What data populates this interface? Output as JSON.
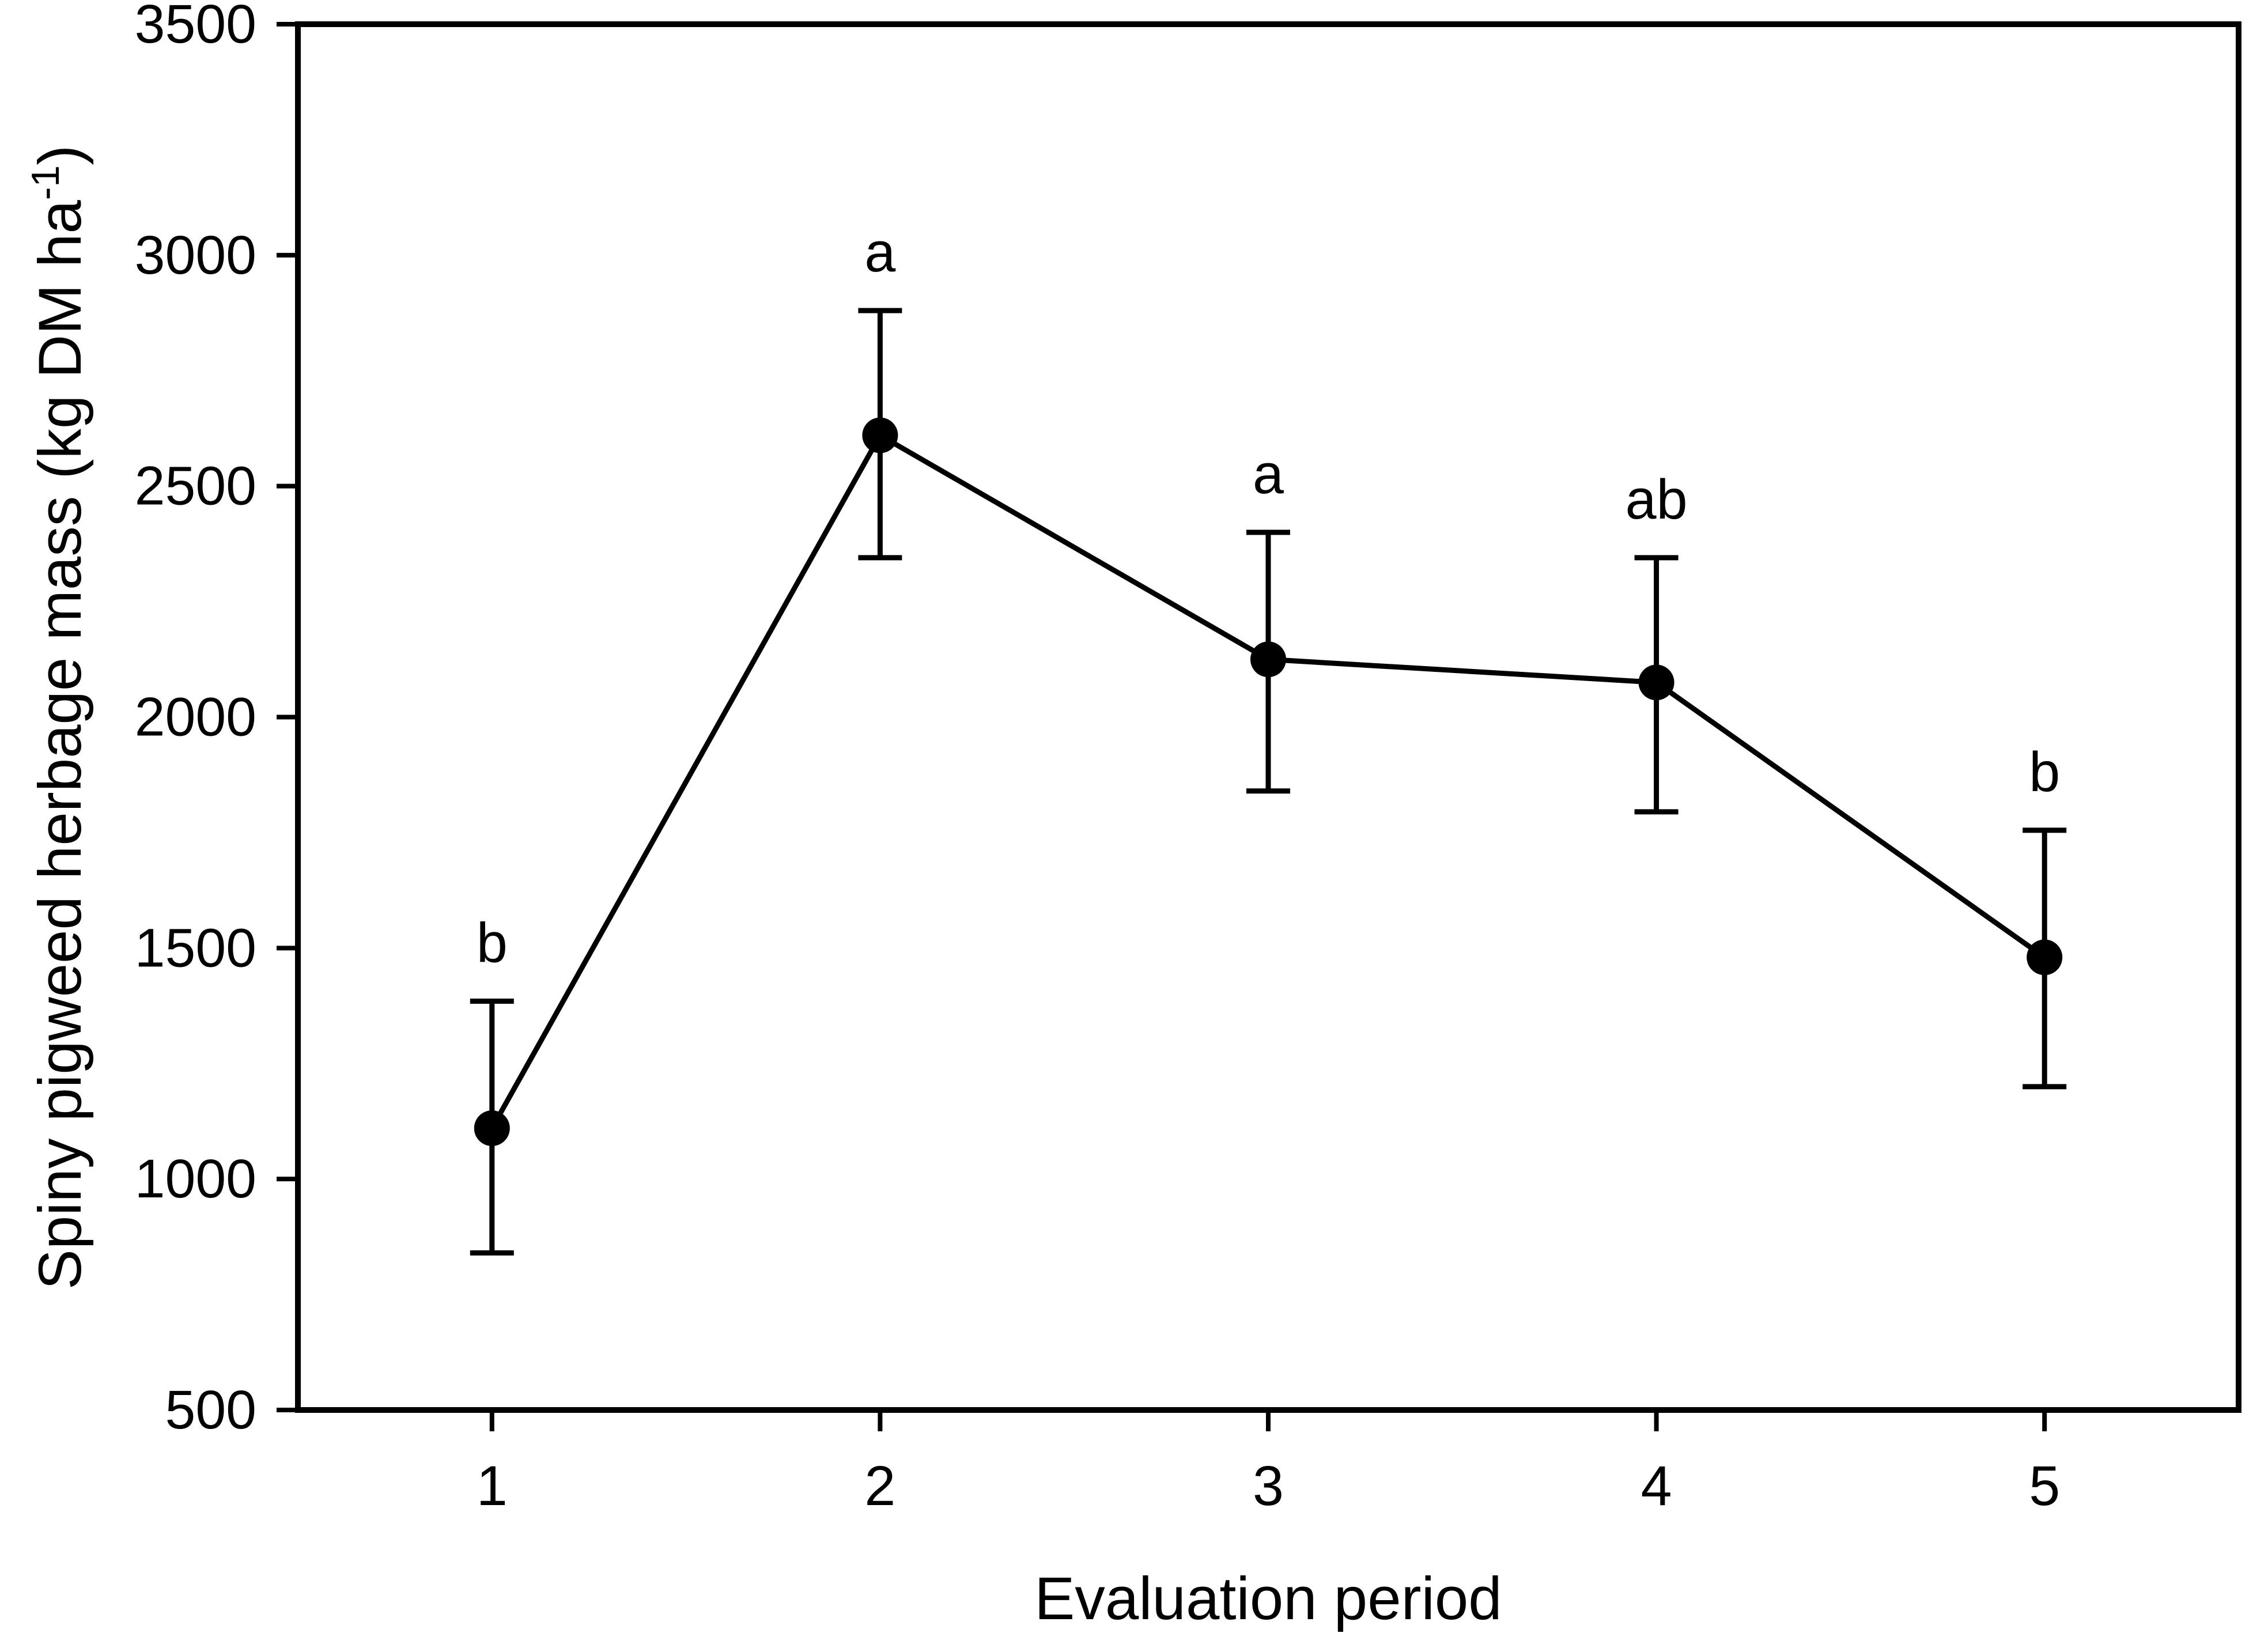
{
  "figure": {
    "background": "#ffffff",
    "foreground": "#000000"
  },
  "chart_data": {
    "type": "line",
    "title": "",
    "xlabel": "Evaluation period",
    "ylabel": "Spiny pigweed herbage mass (kg DM ha-1)",
    "ylabel_parts": {
      "main": "Spiny pigweed herbage mass (kg DM ha",
      "superscript": "-1",
      "end": ")"
    },
    "x": [
      1,
      2,
      3,
      4,
      5
    ],
    "xtick_labels": [
      "1",
      "2",
      "3",
      "4",
      "5"
    ],
    "ytick_labels": [
      "500",
      "1000",
      "1500",
      "2000",
      "2500",
      "3000",
      "3500"
    ],
    "yticks": [
      500,
      1000,
      1500,
      2000,
      2500,
      3000,
      3500
    ],
    "ylim": [
      500,
      3500
    ],
    "xlim": [
      0.5,
      5.5
    ],
    "grid": false,
    "legend": "none",
    "frame": true,
    "series": [
      {
        "name": "Spiny pigweed herbage mass",
        "marker": "filled-circle",
        "color": "#000000",
        "values": [
          1110,
          2610,
          2125,
          2075,
          1480
        ],
        "error_upper": [
          1385,
          2880,
          2400,
          2345,
          1755
        ],
        "error_lower": [
          840,
          2345,
          1840,
          1795,
          1200
        ]
      }
    ],
    "significance_letters": [
      "b",
      "a",
      "a",
      "ab",
      "b"
    ]
  }
}
